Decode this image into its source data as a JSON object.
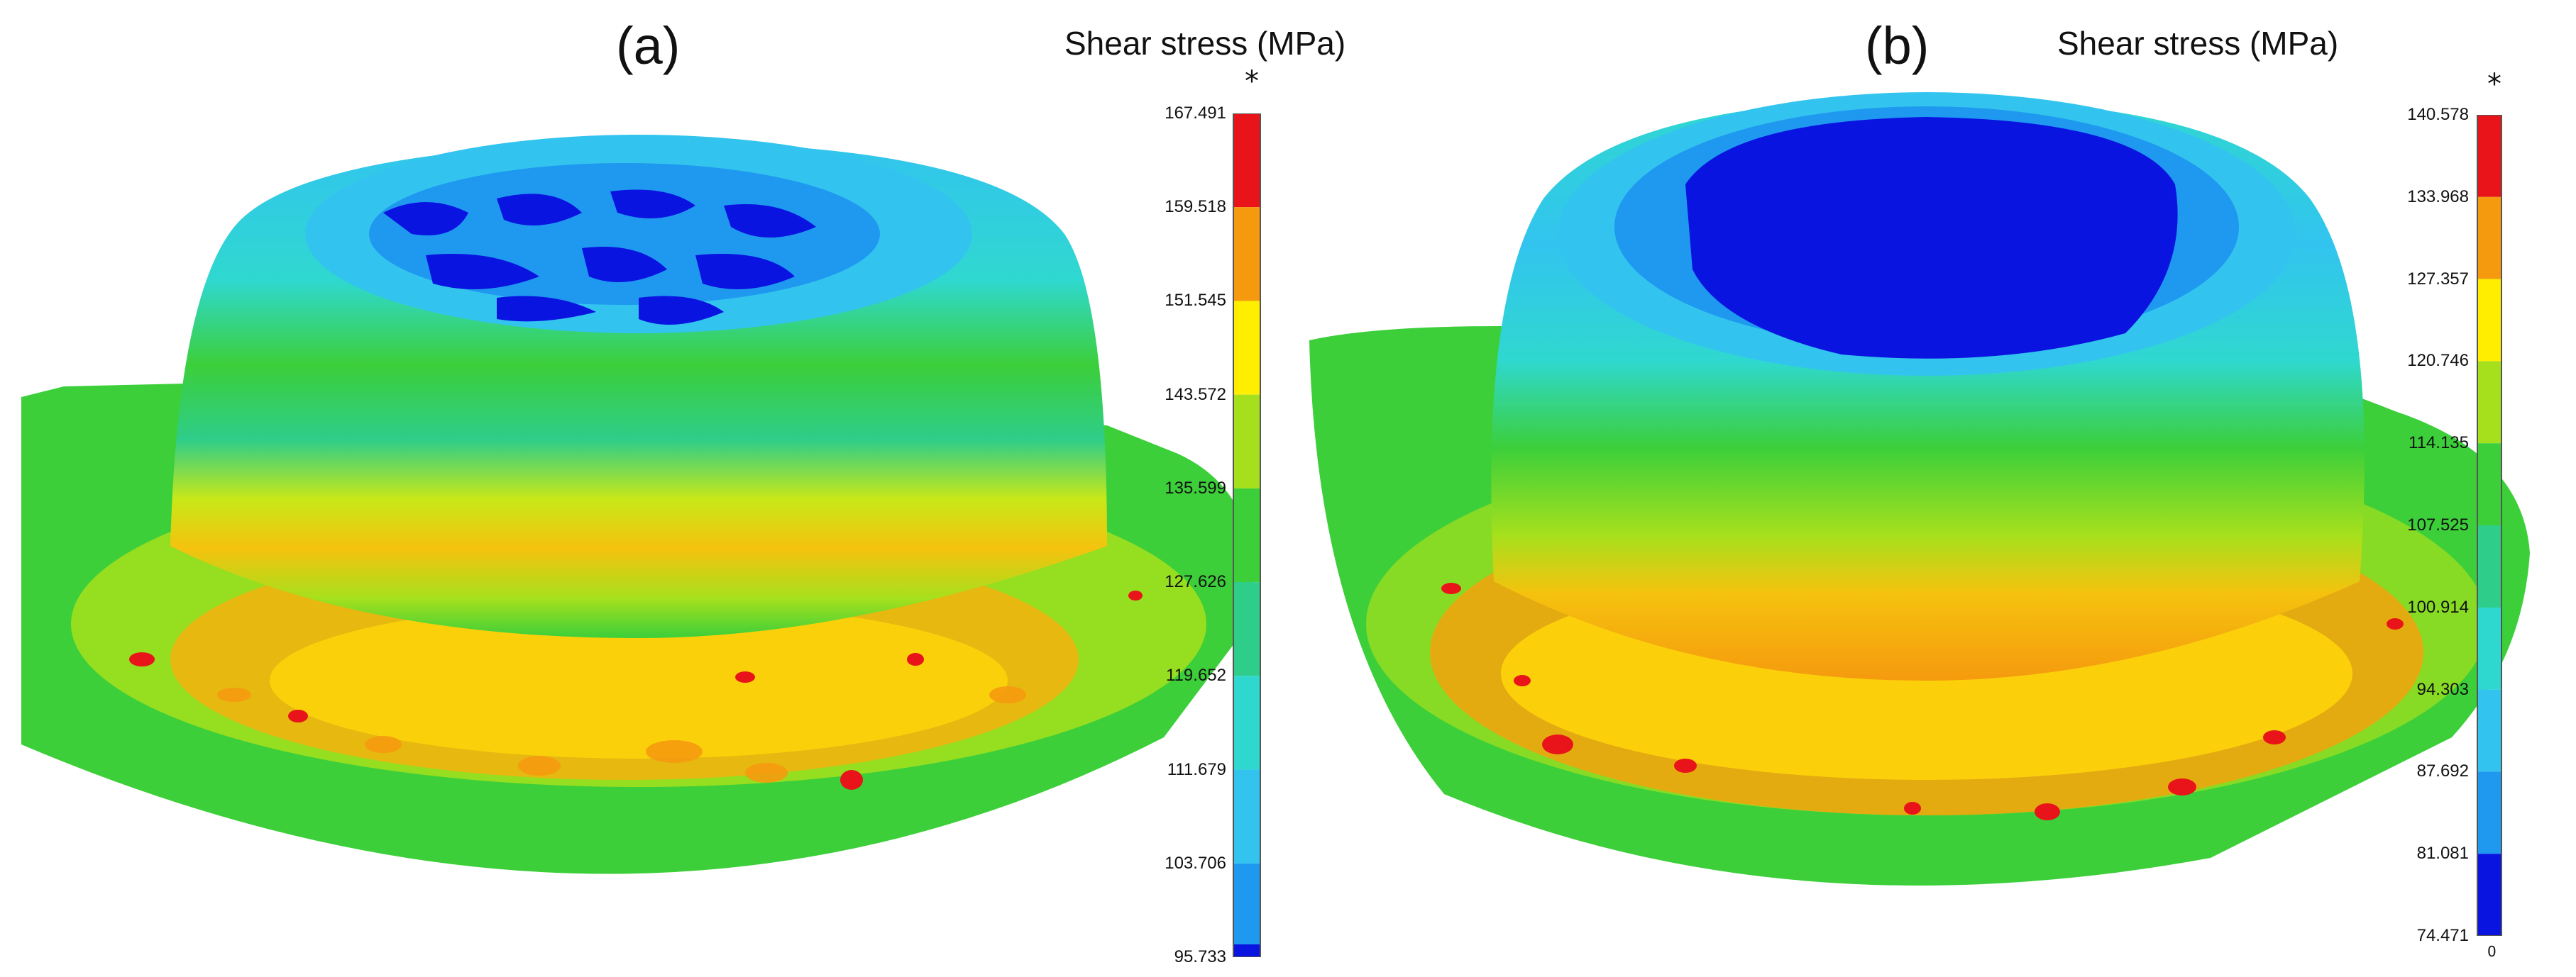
{
  "figure": {
    "panels": [
      {
        "id": "a",
        "label": "(a)",
        "legend_title": "Shear stress (MPa)",
        "marker": "*",
        "ticks": [
          "167.491",
          "159.518",
          "151.545",
          "143.572",
          "135.599",
          "127.626",
          "119.652",
          "111.679",
          "103.706",
          "95.733"
        ],
        "colors": [
          "#e8141a",
          "#f59a0e",
          "#ffee00",
          "#a6e01c",
          "#3ccf3a",
          "#2ecd8a",
          "#2fd8cf",
          "#32c4ef",
          "#1f98f0",
          "#0a14e0"
        ]
      },
      {
        "id": "b",
        "label": "(b)",
        "legend_title": "Shear stress (MPa)",
        "marker": "*",
        "zero_mark": "0",
        "ticks": [
          "140.578",
          "133.968",
          "127.357",
          "120.746",
          "114.135",
          "107.525",
          "100.914",
          "94.303",
          "87.692",
          "81.081",
          "74.471"
        ],
        "colors": [
          "#e8141a",
          "#f59a0e",
          "#ffee00",
          "#a6e01c",
          "#3ccf3a",
          "#2ecd8a",
          "#2fd8cf",
          "#32c4ef",
          "#1f98f0",
          "#0a14e0"
        ]
      }
    ]
  }
}
